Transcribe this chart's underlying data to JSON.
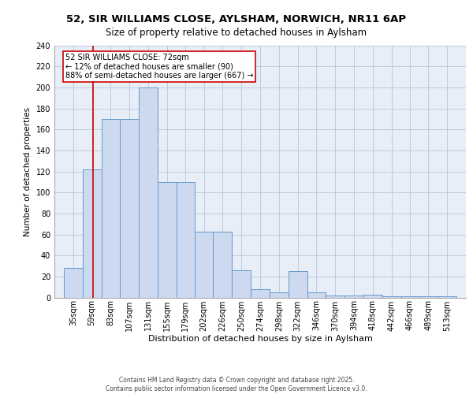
{
  "title1": "52, SIR WILLIAMS CLOSE, AYLSHAM, NORWICH, NR11 6AP",
  "title2": "Size of property relative to detached houses in Aylsham",
  "xlabel": "Distribution of detached houses by size in Aylsham",
  "ylabel": "Number of detached properties",
  "bin_labels": [
    "35sqm",
    "59sqm",
    "83sqm",
    "107sqm",
    "131sqm",
    "155sqm",
    "179sqm",
    "202sqm",
    "226sqm",
    "250sqm",
    "274sqm",
    "298sqm",
    "322sqm",
    "346sqm",
    "370sqm",
    "394sqm",
    "418sqm",
    "442sqm",
    "466sqm",
    "489sqm",
    "513sqm"
  ],
  "bin_edges": [
    35,
    59,
    83,
    107,
    131,
    155,
    179,
    202,
    226,
    250,
    274,
    298,
    322,
    346,
    370,
    394,
    418,
    442,
    466,
    489,
    513
  ],
  "bar_heights": [
    28,
    122,
    170,
    170,
    200,
    110,
    110,
    63,
    63,
    26,
    8,
    5,
    25,
    5,
    2,
    2,
    3,
    1,
    1,
    1,
    1
  ],
  "bar_color": "#ccd9ef",
  "bar_edgecolor": "#6699cc",
  "red_line_x": 72,
  "annotation_text": "52 SIR WILLIAMS CLOSE: 72sqm\n← 12% of detached houses are smaller (90)\n88% of semi-detached houses are larger (667) →",
  "annotation_box_color": "#ffffff",
  "annotation_border_color": "#cc0000",
  "ylim": [
    0,
    240
  ],
  "yticks": [
    0,
    20,
    40,
    60,
    80,
    100,
    120,
    140,
    160,
    180,
    200,
    220,
    240
  ],
  "background_color": "#e8eef8",
  "footnote": "Contains HM Land Registry data © Crown copyright and database right 2025.\nContains public sector information licensed under the Open Government Licence v3.0.",
  "title1_fontsize": 9.5,
  "title2_fontsize": 8.5,
  "axis_label_fontsize": 7.5,
  "tick_fontsize": 7,
  "annot_fontsize": 7,
  "footnote_fontsize": 5.5
}
